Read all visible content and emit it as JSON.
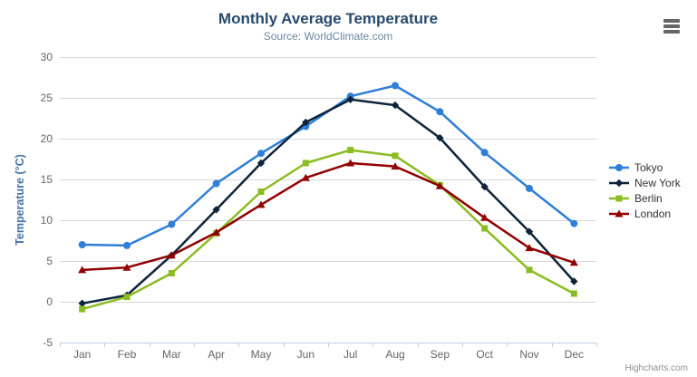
{
  "chart_data": {
    "type": "line",
    "title": "Monthly Average Temperature",
    "subtitle": "Source: WorldClimate.com",
    "xlabel": "",
    "ylabel": "Temperature (°C)",
    "categories": [
      "Jan",
      "Feb",
      "Mar",
      "Apr",
      "May",
      "Jun",
      "Jul",
      "Aug",
      "Sep",
      "Oct",
      "Nov",
      "Dec"
    ],
    "ylim": [
      -5,
      30
    ],
    "ytick_interval": 5,
    "ytick_labels": [
      "-5",
      "0",
      "5",
      "10",
      "15",
      "20",
      "25",
      "30"
    ],
    "grid": true,
    "legend_position": "right",
    "series": [
      {
        "name": "Tokyo",
        "color": "#2f7ed8",
        "marker": "circle",
        "values": [
          7.0,
          6.9,
          9.5,
          14.5,
          18.2,
          21.5,
          25.2,
          26.5,
          23.3,
          18.3,
          13.9,
          9.6
        ]
      },
      {
        "name": "New York",
        "color": "#0d233a",
        "marker": "diamond",
        "values": [
          -0.2,
          0.8,
          5.7,
          11.3,
          17.0,
          22.0,
          24.8,
          24.1,
          20.1,
          14.1,
          8.6,
          2.5
        ]
      },
      {
        "name": "Berlin",
        "color": "#8bbc21",
        "marker": "square",
        "values": [
          -0.9,
          0.6,
          3.5,
          8.4,
          13.5,
          17.0,
          18.6,
          17.9,
          14.3,
          9.0,
          3.9,
          1.0
        ]
      },
      {
        "name": "London",
        "color": "#910000",
        "marker": "triangle",
        "values": [
          3.9,
          4.2,
          5.7,
          8.5,
          11.9,
          15.2,
          17.0,
          16.6,
          14.2,
          10.3,
          6.6,
          4.8
        ]
      }
    ],
    "palette": {
      "title_color": "#274b6d",
      "subtitle_color": "#6d869f",
      "axis_title_color": "#4572a7",
      "tick_label_color": "#666666",
      "grid_color": "#d8d8d8",
      "axis_line_color": "#c0d0e0",
      "legend_text_color": "#333333",
      "credits_color": "#909090",
      "menu_icon_color": "#666666"
    }
  },
  "credits": {
    "label": "Highcharts.com"
  }
}
